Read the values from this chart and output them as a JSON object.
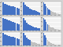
{
  "charts": [
    {
      "bars": [
        9,
        8.2,
        7.5,
        7.0,
        6.5,
        6.0,
        5.5,
        5.0,
        4.5
      ],
      "colors": [
        "#4472C4",
        "#4472C4",
        "#4472C4",
        "#4472C4",
        "#4472C4",
        "#4472C4",
        "#4472C4",
        "#4472C4",
        "#4472C4"
      ],
      "n_blue": 9
    },
    {
      "bars": [
        9,
        7.5,
        6.5,
        5.5,
        4.8,
        4.2,
        3.7,
        3.2,
        2.8,
        2.4,
        2.0
      ],
      "colors": [
        "#4472C4",
        "#4472C4",
        "#4472C4",
        "#4472C4",
        "#4472C4",
        "#4472C4",
        "#4472C4",
        "#4472C4",
        "#4472C4",
        "#4472C4",
        "#4472C4"
      ],
      "n_blue": 11
    },
    {
      "bars": [
        9,
        7.8,
        6.5,
        5.2,
        4.2,
        3.4,
        2.8,
        2.3,
        1.9,
        1.6,
        1.3,
        1.1,
        0.9,
        0.7
      ],
      "colors": [
        "#4472C4",
        "#4472C4",
        "#4472C4",
        "#4472C4",
        "#4472C4",
        "#4472C4",
        "#C0C0C0",
        "#C0C0C0",
        "#C0C0C0",
        "#C0C0C0",
        "#C0C0C0",
        "#C0C0C0",
        "#C0C0C0",
        "#C0C0C0"
      ],
      "n_blue": 6
    },
    {
      "bars": [
        9,
        8.2,
        7.5,
        7.0,
        6.5,
        6.0,
        5.5,
        5.0,
        4.5
      ],
      "colors": [
        "#4472C4",
        "#4472C4",
        "#4472C4",
        "#4472C4",
        "#4472C4",
        "#4472C4",
        "#4472C4",
        "#4472C4",
        "#4472C4"
      ],
      "n_blue": 9
    },
    {
      "bars": [
        9,
        7.0,
        5.5,
        4.5,
        3.7,
        3.1,
        2.6,
        2.2,
        1.9,
        1.6,
        1.4
      ],
      "colors": [
        "#4472C4",
        "#4472C4",
        "#4472C4",
        "#4472C4",
        "#4472C4",
        "#4472C4",
        "#4472C4",
        "#4472C4",
        "#4472C4",
        "#4472C4",
        "#4472C4"
      ],
      "n_blue": 11
    },
    {
      "bars": [
        9,
        7.5,
        5.8,
        4.5,
        3.5,
        2.8,
        2.2,
        1.8,
        1.5,
        1.2,
        1.0,
        0.8,
        0.6,
        0.5
      ],
      "colors": [
        "#4472C4",
        "#4472C4",
        "#4472C4",
        "#4472C4",
        "#C0C0C0",
        "#C0C0C0",
        "#C0C0C0",
        "#C0C0C0",
        "#C0C0C0",
        "#C0C0C0",
        "#C0C0C0",
        "#C0C0C0",
        "#C0C0C0",
        "#C0C0C0"
      ],
      "n_blue": 4
    },
    {
      "bars": [
        9,
        8.2,
        7.5,
        7.0,
        6.5,
        6.0,
        5.5,
        5.0,
        4.5
      ],
      "colors": [
        "#4472C4",
        "#4472C4",
        "#4472C4",
        "#4472C4",
        "#4472C4",
        "#4472C4",
        "#4472C4",
        "#4472C4",
        "#4472C4"
      ],
      "n_blue": 9
    },
    {
      "bars": [
        9,
        7.2,
        5.8,
        4.7,
        3.8,
        3.1,
        2.6,
        2.1,
        1.8,
        1.5,
        1.2
      ],
      "colors": [
        "#4472C4",
        "#4472C4",
        "#4472C4",
        "#4472C4",
        "#4472C4",
        "#C0C0C0",
        "#C0C0C0",
        "#C0C0C0",
        "#C0C0C0",
        "#C0C0C0",
        "#C0C0C0"
      ],
      "n_blue": 5
    },
    {
      "bars": [
        9,
        7.5,
        5.5,
        4.0,
        3.0,
        2.3,
        1.8,
        1.4,
        1.1,
        0.9,
        0.7,
        0.6,
        0.5,
        0.4
      ],
      "colors": [
        "#4472C4",
        "#4472C4",
        "#4472C4",
        "#C0C0C0",
        "#C0C0C0",
        "#C0C0C0",
        "#C0C0C0",
        "#C0C0C0",
        "#C0C0C0",
        "#C0C0C0",
        "#C0C0C0",
        "#C0C0C0",
        "#C0C0C0",
        "#C0C0C0"
      ],
      "n_blue": 3
    }
  ],
  "bg_color": "#D4D4D4",
  "panel_bg": "#F2F2F2",
  "grid_color": "#FFFFFF",
  "bar_color_blue": "#4472C4",
  "bar_color_grey": "#C0C0C0"
}
